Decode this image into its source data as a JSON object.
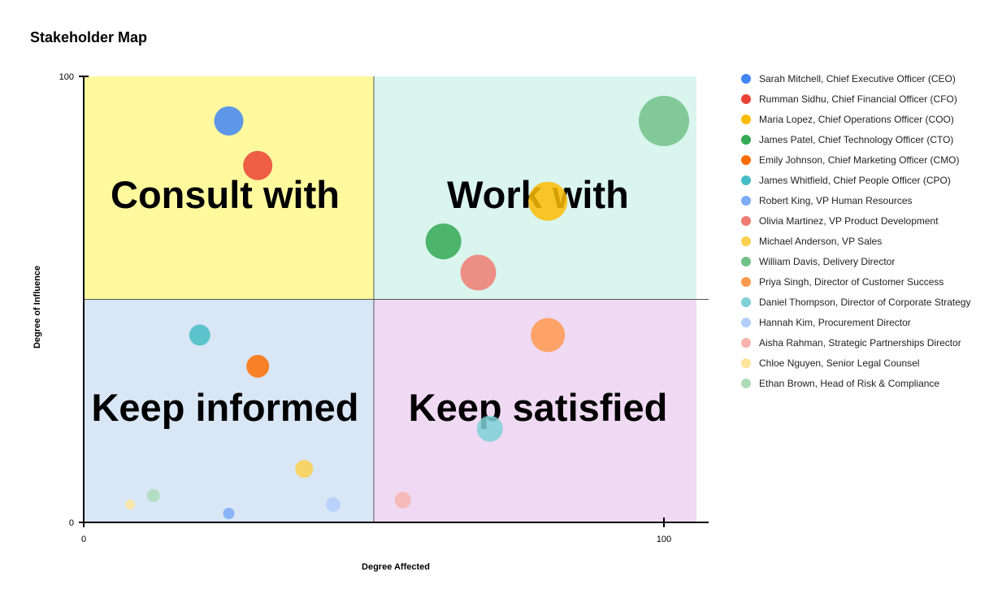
{
  "chart_data": {
    "type": "scatter",
    "title": "Stakeholder Map",
    "xlabel": "Degree Affected",
    "ylabel": "Degree of Influence",
    "xlim": [
      0,
      108
    ],
    "ylim": [
      0,
      100
    ],
    "x_ticks": [
      0,
      100
    ],
    "y_ticks": [
      0,
      100
    ],
    "x_tick_labels": [
      "0",
      "100"
    ],
    "y_tick_labels": [
      "0",
      "100"
    ],
    "legend_position": "right",
    "midpoint": {
      "x": 50,
      "y": 50
    },
    "quadrants": [
      {
        "name": "top-left",
        "label": "Consult with",
        "color": "#fff99e"
      },
      {
        "name": "top-right",
        "label": "Work with",
        "color": "#d9f5ee"
      },
      {
        "name": "bottom-left",
        "label": "Keep informed",
        "color": "#d8e6f5"
      },
      {
        "name": "bottom-right",
        "label": "Keep satisfied",
        "color": "#f0d9f3"
      }
    ],
    "series": [
      {
        "name": "Sarah Mitchell, Chief Executive Officer (CEO)",
        "color": "#4285f4",
        "points": [
          {
            "x": 25,
            "y": 90,
            "size": 18
          }
        ]
      },
      {
        "name": "Rumman Sidhu, Chief Financial Officer (CFO)",
        "color": "#ea4335",
        "points": [
          {
            "x": 30,
            "y": 80,
            "size": 18
          }
        ]
      },
      {
        "name": "Maria Lopez, Chief Operations Officer (COO)",
        "color": "#fbbc04",
        "points": [
          {
            "x": 80,
            "y": 72,
            "size": 24
          }
        ]
      },
      {
        "name": "James Patel, Chief Technology Officer (CTO)",
        "color": "#34a853",
        "points": [
          {
            "x": 62,
            "y": 63,
            "size": 22
          }
        ]
      },
      {
        "name": "Emily Johnson, Chief Marketing Officer (CMO)",
        "color": "#ff6d01",
        "points": [
          {
            "x": 30,
            "y": 35,
            "size": 14
          }
        ]
      },
      {
        "name": "James Whitfield, Chief People Officer (CPO)",
        "color": "#46bdc6",
        "points": [
          {
            "x": 20,
            "y": 42,
            "size": 13
          }
        ]
      },
      {
        "name": "Robert King, VP Human Resources",
        "color": "#7baaf7",
        "points": [
          {
            "x": 25,
            "y": 2,
            "size": 7
          }
        ]
      },
      {
        "name": "Olivia Martinez, VP Product Development",
        "color": "#f07b72",
        "points": [
          {
            "x": 68,
            "y": 56,
            "size": 22
          }
        ]
      },
      {
        "name": "Michael Anderson, VP Sales",
        "color": "#fcd04f",
        "points": [
          {
            "x": 38,
            "y": 12,
            "size": 11
          }
        ]
      },
      {
        "name": "William Davis, Delivery Director",
        "color": "#71c287",
        "points": [
          {
            "x": 100,
            "y": 90,
            "size": 31
          }
        ]
      },
      {
        "name": "Priya Singh, Director of Customer Success",
        "color": "#ff994d",
        "points": [
          {
            "x": 80,
            "y": 42,
            "size": 21
          }
        ]
      },
      {
        "name": "Daniel Thompson, Director of Corporate Strategy",
        "color": "#7ed1d7",
        "points": [
          {
            "x": 70,
            "y": 21,
            "size": 16
          }
        ]
      },
      {
        "name": "Hannah Kim, Procurement Director",
        "color": "#b3cefb",
        "points": [
          {
            "x": 43,
            "y": 4,
            "size": 9
          }
        ]
      },
      {
        "name": "Aisha Rahman, Strategic Partnerships Director",
        "color": "#f7b4ae",
        "points": [
          {
            "x": 55,
            "y": 5,
            "size": 10
          }
        ]
      },
      {
        "name": "Chloe Nguyen, Senior Legal Counsel",
        "color": "#fde49b",
        "points": [
          {
            "x": 8,
            "y": 4,
            "size": 6
          }
        ]
      },
      {
        "name": "Ethan Brown, Head of Risk & Compliance",
        "color": "#aedcba",
        "points": [
          {
            "x": 12,
            "y": 6,
            "size": 8
          }
        ]
      }
    ]
  }
}
